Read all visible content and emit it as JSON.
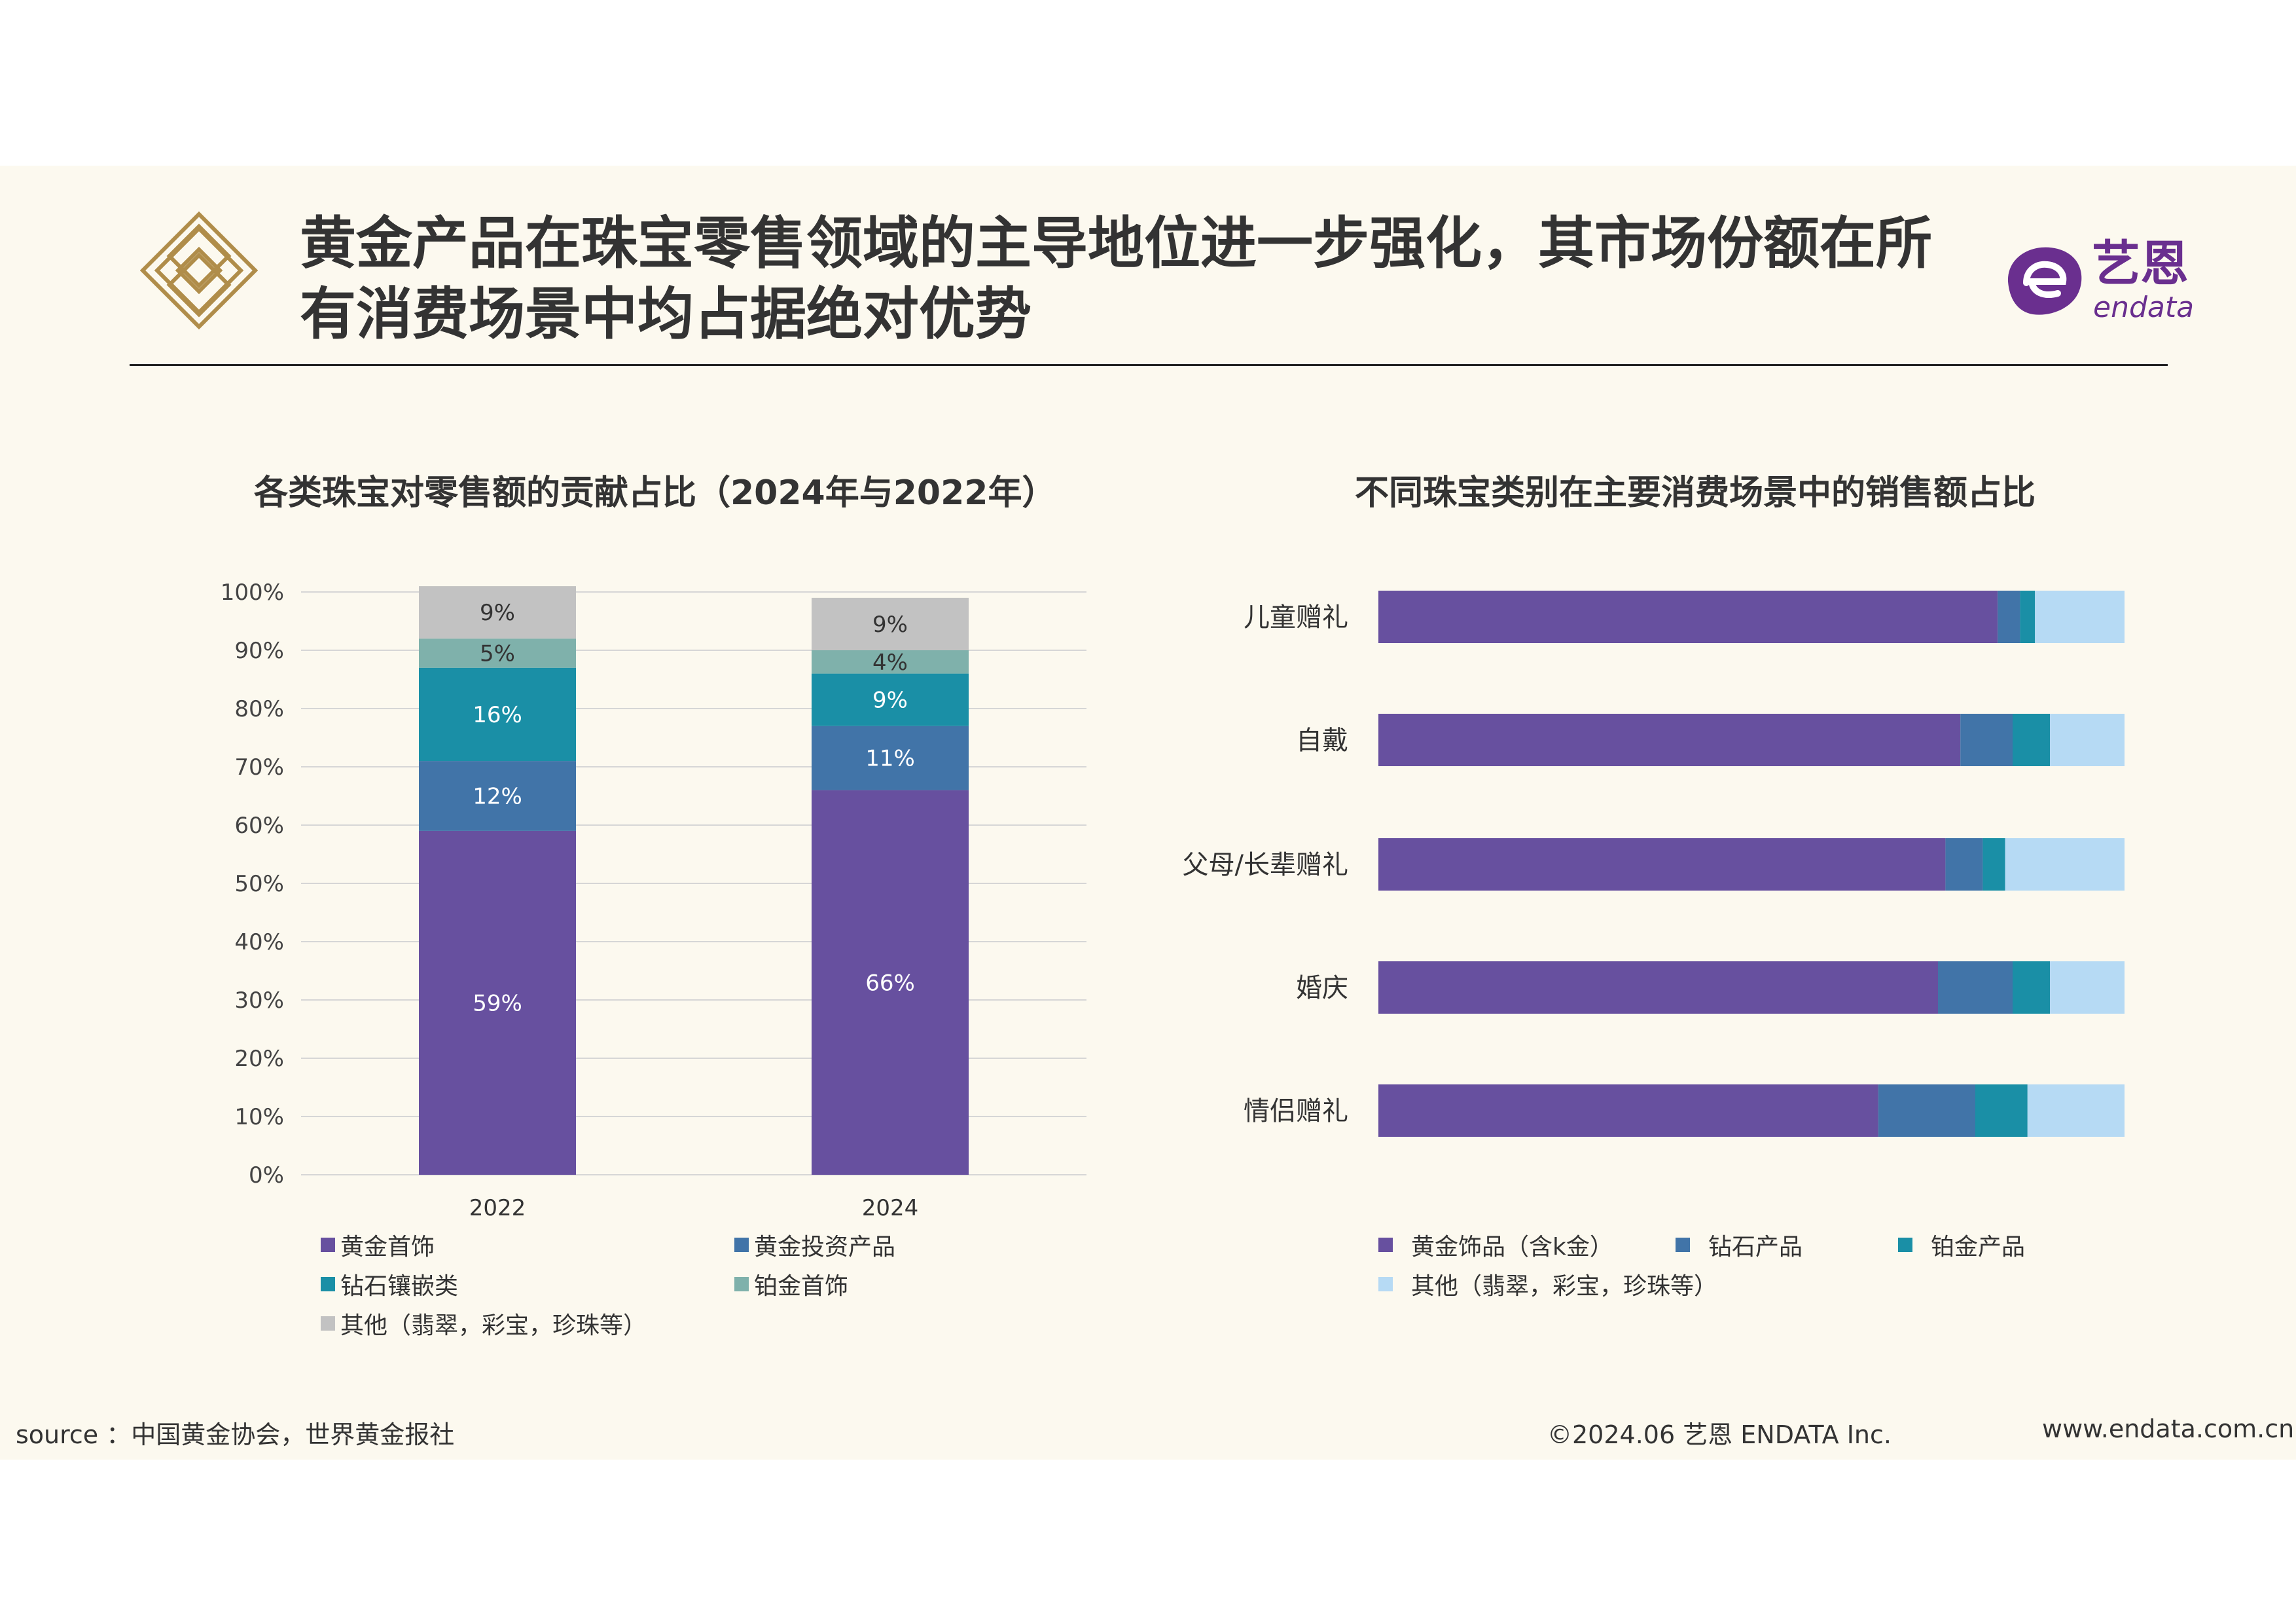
{
  "header": {
    "title_line1": "黄金产品在珠宝零售领域的主导地位进一步强化，其市场份额在所",
    "title_line2": "有消费场景中均占据绝对优势",
    "brand_cn": "艺恩",
    "brand_en": "endata",
    "brand_color": "#6a2f8f"
  },
  "chart_data": [
    {
      "type": "bar",
      "stacked": true,
      "orientation": "vertical",
      "title": "各类珠宝对零售额的贡献占比（2024年与2022年）",
      "categories": [
        "2022",
        "2024"
      ],
      "ylim": [
        0,
        100
      ],
      "y_ticks": [
        "0%",
        "10%",
        "20%",
        "30%",
        "40%",
        "50%",
        "60%",
        "70%",
        "80%",
        "90%",
        "100%"
      ],
      "grid": true,
      "legend_position": "bottom",
      "series": [
        {
          "name": "黄金首饰",
          "color": "#67509f",
          "values": [
            59,
            66
          ],
          "labels": [
            "59%",
            "66%"
          ]
        },
        {
          "name": "黄金投资产品",
          "color": "#4174a8",
          "values": [
            12,
            11
          ],
          "labels": [
            "12%",
            "11%"
          ]
        },
        {
          "name": "钻石镶嵌类",
          "color": "#1a8fa6",
          "values": [
            16,
            9
          ],
          "labels": [
            "16%",
            "9%"
          ]
        },
        {
          "name": "铂金首饰",
          "color": "#7fb1ab",
          "values": [
            5,
            4
          ],
          "labels": [
            "5%",
            "4%"
          ]
        },
        {
          "name": "其他（翡翠，彩宝，珍珠等）",
          "color": "#c2c2c2",
          "values": [
            9,
            9
          ],
          "labels": [
            "9%",
            "9%"
          ]
        }
      ]
    },
    {
      "type": "bar",
      "stacked": true,
      "orientation": "horizontal",
      "title": "不同珠宝类别在主要消费场景中的销售额占比",
      "categories": [
        "儿童赠礼",
        "自戴",
        "父母/长辈赠礼",
        "婚庆",
        "情侣赠礼"
      ],
      "xlim": [
        0,
        100
      ],
      "legend_position": "bottom",
      "series": [
        {
          "name": "黄金饰品（含k金）",
          "color": "#67509f",
          "values": [
            83,
            78,
            76,
            75,
            67
          ]
        },
        {
          "name": "钻石产品",
          "color": "#4174a8",
          "values": [
            3,
            7,
            5,
            10,
            13
          ]
        },
        {
          "name": "铂金产品",
          "color": "#1a8fa6",
          "values": [
            2,
            5,
            3,
            5,
            7
          ]
        },
        {
          "name": "其他（翡翠，彩宝，珍珠等）",
          "color": "#b6daf4",
          "values": [
            12,
            10,
            16,
            10,
            13
          ]
        }
      ]
    }
  ],
  "footer": {
    "source": "source ：中国黄金协会，世界黄金报社",
    "copyright": "©2024.06  艺恩 ENDATA Inc.",
    "website": "www.endata.com.cn"
  }
}
